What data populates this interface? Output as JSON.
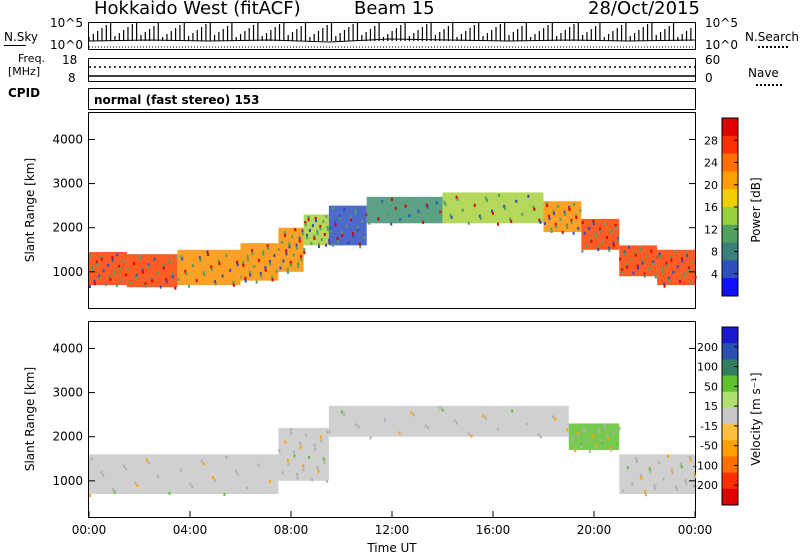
{
  "header": {
    "station": "Hokkaido West (fitACF)",
    "beam": "Beam 15",
    "date": "28/Oct/2015"
  },
  "status_panels": {
    "nsky_label": "N.Sky",
    "nsky_ticks": [
      "10^5",
      "10^0"
    ],
    "nsearch_label": "N.Search",
    "nsearch_ticks": [
      "10^5",
      "10^0"
    ],
    "freq_label_1": "Freq.",
    "freq_label_2": "[MHz]",
    "freq_ticks": [
      "18",
      "8"
    ],
    "nave_label": "Nave",
    "nave_ticks": [
      "60",
      "0"
    ],
    "cpid_label": "CPID",
    "cpid_value": "normal (fast stereo) 153"
  },
  "chart_data": [
    {
      "type": "heatmap",
      "title": "",
      "xlabel": "",
      "ylabel": "Slant Range [km]",
      "ylim": [
        180,
        4600
      ],
      "y_ticks": [
        "1000",
        "2000",
        "3000",
        "4000"
      ],
      "colorbar_label": "Power [dB]",
      "colorbar_ticks": [
        "28",
        "24",
        "20",
        "16",
        "12",
        "8",
        "4"
      ],
      "colorbar_colors": [
        "#e00000",
        "#ff3000",
        "#ff7000",
        "#ffa000",
        "#f0d000",
        "#98d040",
        "#50a060",
        "#3a7f7a",
        "#2f4fbf",
        "#1010ff"
      ],
      "bands": [
        {
          "x0": 0.0,
          "x1": 1.5,
          "y0": 700,
          "y1": 1450,
          "level": 24
        },
        {
          "x0": 1.5,
          "x1": 3.5,
          "y0": 650,
          "y1": 1400,
          "level": 24
        },
        {
          "x0": 3.5,
          "x1": 6.0,
          "y0": 700,
          "y1": 1500,
          "level": 20
        },
        {
          "x0": 6.0,
          "x1": 7.5,
          "y0": 800,
          "y1": 1650,
          "level": 20
        },
        {
          "x0": 7.5,
          "x1": 8.5,
          "y0": 1000,
          "y1": 2000,
          "level": 20
        },
        {
          "x0": 8.5,
          "x1": 9.5,
          "y0": 1600,
          "y1": 2300,
          "level": 16
        },
        {
          "x0": 9.5,
          "x1": 11.0,
          "y0": 1600,
          "y1": 2500,
          "level": 8
        },
        {
          "x0": 11.0,
          "x1": 14.0,
          "y0": 2100,
          "y1": 2700,
          "level": 12
        },
        {
          "x0": 14.0,
          "x1": 18.0,
          "y0": 2100,
          "y1": 2800,
          "level": 16
        },
        {
          "x0": 18.0,
          "x1": 19.5,
          "y0": 1900,
          "y1": 2600,
          "level": 20
        },
        {
          "x0": 19.5,
          "x1": 21.0,
          "y0": 1500,
          "y1": 2200,
          "level": 24
        },
        {
          "x0": 21.0,
          "x1": 22.5,
          "y0": 900,
          "y1": 1600,
          "level": 24
        },
        {
          "x0": 22.5,
          "x1": 24.0,
          "y0": 700,
          "y1": 1500,
          "level": 24
        }
      ]
    },
    {
      "type": "heatmap",
      "title": "",
      "xlabel": "Time UT",
      "ylabel": "Slant Range [km]",
      "ylim": [
        180,
        4600
      ],
      "y_ticks": [
        "1000",
        "2000",
        "3000",
        "4000"
      ],
      "x_ticks": [
        "00:00",
        "04:00",
        "08:00",
        "12:00",
        "16:00",
        "20:00",
        "00:00"
      ],
      "colorbar_label": "Velocity [m s⁻¹]",
      "colorbar_ticks": [
        "200",
        "100",
        "50",
        "15",
        "-15",
        "-50",
        "-100",
        "-200"
      ],
      "colorbar_colors": [
        "#1a1acc",
        "#2a50b0",
        "#307f60",
        "#60c030",
        "#b0e070",
        "#c8c8c8",
        "#ffc040",
        "#ffa000",
        "#ff7000",
        "#ff3000",
        "#e00000"
      ],
      "bands": [
        {
          "x0": 0.0,
          "x1": 7.5,
          "y0": 700,
          "y1": 1600,
          "level": 0
        },
        {
          "x0": 7.5,
          "x1": 9.5,
          "y0": 1000,
          "y1": 2200,
          "level": 0
        },
        {
          "x0": 9.5,
          "x1": 19.0,
          "y0": 2000,
          "y1": 2700,
          "level": 0
        },
        {
          "x0": 19.0,
          "x1": 21.0,
          "y0": 1700,
          "y1": 2300,
          "level": 30
        },
        {
          "x0": 21.0,
          "x1": 24.0,
          "y0": 700,
          "y1": 1600,
          "level": 0
        }
      ]
    }
  ]
}
